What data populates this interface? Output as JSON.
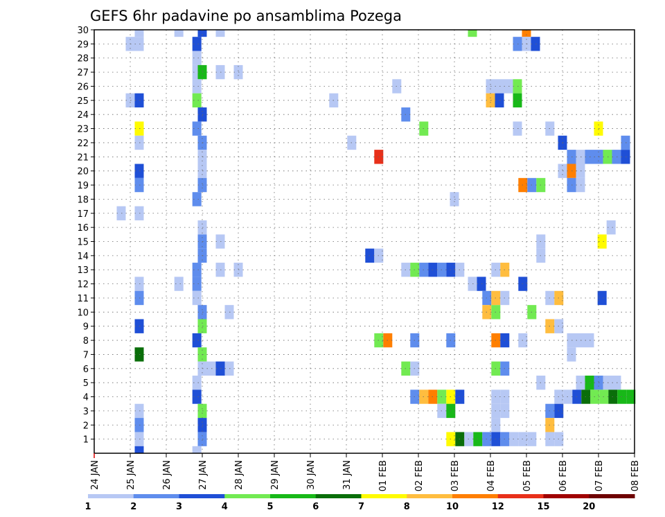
{
  "chart_data": {
    "type": "heatmap",
    "title": "GEFS 6hr padavine po ansamblima Pozega",
    "xlabel": "",
    "ylabel": "",
    "x_tick_labels": [
      "24 JAN",
      "25 JAN",
      "26 JAN",
      "27 JAN",
      "28 JAN",
      "29 JAN",
      "30 JAN",
      "31 JAN",
      "01 FEB",
      "02 FEB",
      "03 FEB",
      "04 FEB",
      "05 FEB",
      "06 FEB",
      "07 FEB",
      "08 FEB"
    ],
    "y_tick_labels": [
      "1",
      "2",
      "3",
      "4",
      "5",
      "6",
      "7",
      "8",
      "9",
      "10",
      "11",
      "12",
      "13",
      "14",
      "15",
      "16",
      "17",
      "18",
      "19",
      "20",
      "21",
      "22",
      "23",
      "24",
      "25",
      "26",
      "27",
      "28",
      "29",
      "30"
    ],
    "xlim": [
      0,
      15
    ],
    "ylim": [
      0,
      30
    ],
    "grid": true,
    "cell_width_days": 0.25,
    "levels": [
      "1",
      "2",
      "3",
      "4",
      "5",
      "6",
      "7",
      "8",
      "10",
      "12",
      "15",
      "20"
    ],
    "colors": [
      "#b7c8f4",
      "#5f8ded",
      "#1f4fd6",
      "#72ea52",
      "#18b818",
      "#0a6e0a",
      "#fffb00",
      "#ffbd3f",
      "#ff7f00",
      "#e8301a",
      "#a00000",
      "#6e0000"
    ],
    "cells": [
      [
        1.25,
        30,
        0
      ],
      [
        2.35,
        30,
        0
      ],
      [
        3.0,
        30,
        2
      ],
      [
        3.5,
        30,
        0
      ],
      [
        10.5,
        30,
        3
      ],
      [
        12.0,
        30,
        8
      ],
      [
        1.0,
        29,
        0
      ],
      [
        1.25,
        29,
        0
      ],
      [
        2.85,
        29,
        2
      ],
      [
        11.75,
        29,
        1
      ],
      [
        12.0,
        29,
        0
      ],
      [
        12.25,
        29,
        2
      ],
      [
        2.85,
        28,
        0
      ],
      [
        2.85,
        27,
        0
      ],
      [
        3.0,
        27,
        4
      ],
      [
        3.5,
        27,
        0
      ],
      [
        4.0,
        27,
        0
      ],
      [
        2.85,
        26,
        0
      ],
      [
        8.4,
        26,
        0
      ],
      [
        11.0,
        26,
        0
      ],
      [
        11.25,
        26,
        0
      ],
      [
        11.5,
        26,
        0
      ],
      [
        11.75,
        26,
        3
      ],
      [
        1.0,
        25,
        0
      ],
      [
        1.25,
        25,
        2
      ],
      [
        2.85,
        25,
        3
      ],
      [
        6.65,
        25,
        0
      ],
      [
        11.0,
        25,
        7
      ],
      [
        11.25,
        25,
        2
      ],
      [
        11.75,
        25,
        4
      ],
      [
        3.0,
        24,
        2
      ],
      [
        8.65,
        24,
        1
      ],
      [
        1.25,
        23,
        6
      ],
      [
        2.85,
        23,
        1
      ],
      [
        9.15,
        23,
        3
      ],
      [
        11.75,
        23,
        0
      ],
      [
        12.65,
        23,
        0
      ],
      [
        14.0,
        23,
        6
      ],
      [
        1.25,
        22,
        0
      ],
      [
        3.0,
        22,
        1
      ],
      [
        7.15,
        22,
        0
      ],
      [
        13.0,
        22,
        2
      ],
      [
        14.75,
        22,
        1
      ],
      [
        3.0,
        21,
        0
      ],
      [
        7.9,
        21,
        9
      ],
      [
        13.25,
        21,
        1
      ],
      [
        13.5,
        21,
        0
      ],
      [
        13.75,
        21,
        1
      ],
      [
        14.0,
        21,
        1
      ],
      [
        14.25,
        21,
        3
      ],
      [
        14.5,
        21,
        1
      ],
      [
        14.75,
        21,
        2
      ],
      [
        1.25,
        20,
        2
      ],
      [
        3.0,
        20,
        0
      ],
      [
        13.0,
        20,
        0
      ],
      [
        13.25,
        20,
        8
      ],
      [
        13.5,
        20,
        0
      ],
      [
        1.25,
        19,
        1
      ],
      [
        3.0,
        19,
        1
      ],
      [
        11.9,
        19,
        8
      ],
      [
        12.15,
        19,
        1
      ],
      [
        12.4,
        19,
        3
      ],
      [
        13.25,
        19,
        1
      ],
      [
        13.5,
        19,
        0
      ],
      [
        2.85,
        18,
        1
      ],
      [
        10.0,
        18,
        0
      ],
      [
        0.75,
        17,
        0
      ],
      [
        1.25,
        17,
        0
      ],
      [
        3.0,
        16,
        0
      ],
      [
        14.35,
        16,
        0
      ],
      [
        3.0,
        15,
        1
      ],
      [
        3.5,
        15,
        0
      ],
      [
        12.4,
        15,
        0
      ],
      [
        14.1,
        15,
        6
      ],
      [
        3.0,
        14,
        1
      ],
      [
        7.65,
        14,
        2
      ],
      [
        7.9,
        14,
        0
      ],
      [
        12.4,
        14,
        0
      ],
      [
        2.85,
        13,
        1
      ],
      [
        3.5,
        13,
        0
      ],
      [
        4.0,
        13,
        0
      ],
      [
        8.65,
        13,
        0
      ],
      [
        8.9,
        13,
        3
      ],
      [
        9.15,
        13,
        1
      ],
      [
        9.4,
        13,
        2
      ],
      [
        9.65,
        13,
        1
      ],
      [
        9.9,
        13,
        2
      ],
      [
        10.15,
        13,
        0
      ],
      [
        11.15,
        13,
        0
      ],
      [
        11.4,
        13,
        7
      ],
      [
        1.25,
        12,
        0
      ],
      [
        2.35,
        12,
        0
      ],
      [
        2.85,
        12,
        1
      ],
      [
        10.5,
        12,
        0
      ],
      [
        10.75,
        12,
        2
      ],
      [
        11.9,
        12,
        2
      ],
      [
        1.25,
        11,
        1
      ],
      [
        2.85,
        11,
        0
      ],
      [
        10.9,
        11,
        1
      ],
      [
        11.15,
        11,
        7
      ],
      [
        11.4,
        11,
        0
      ],
      [
        12.65,
        11,
        0
      ],
      [
        12.9,
        11,
        7
      ],
      [
        14.1,
        11,
        2
      ],
      [
        3.0,
        10,
        1
      ],
      [
        3.75,
        10,
        0
      ],
      [
        10.9,
        10,
        7
      ],
      [
        11.15,
        10,
        3
      ],
      [
        12.15,
        10,
        3
      ],
      [
        1.25,
        9,
        2
      ],
      [
        3.0,
        9,
        3
      ],
      [
        12.65,
        9,
        7
      ],
      [
        12.9,
        9,
        0
      ],
      [
        2.85,
        8,
        2
      ],
      [
        7.9,
        8,
        3
      ],
      [
        8.15,
        8,
        8
      ],
      [
        8.9,
        8,
        1
      ],
      [
        9.9,
        8,
        1
      ],
      [
        11.15,
        8,
        8
      ],
      [
        11.4,
        8,
        2
      ],
      [
        11.9,
        8,
        0
      ],
      [
        13.25,
        8,
        0
      ],
      [
        13.5,
        8,
        0
      ],
      [
        13.75,
        8,
        0
      ],
      [
        1.25,
        7,
        5
      ],
      [
        3.0,
        7,
        3
      ],
      [
        13.25,
        7,
        0
      ],
      [
        3.0,
        6,
        0
      ],
      [
        3.25,
        6,
        0
      ],
      [
        3.5,
        6,
        2
      ],
      [
        3.75,
        6,
        0
      ],
      [
        8.65,
        6,
        3
      ],
      [
        8.9,
        6,
        0
      ],
      [
        11.15,
        6,
        3
      ],
      [
        11.4,
        6,
        1
      ],
      [
        2.85,
        5,
        0
      ],
      [
        12.4,
        5,
        0
      ],
      [
        13.5,
        5,
        0
      ],
      [
        13.75,
        5,
        4
      ],
      [
        14.0,
        5,
        1
      ],
      [
        14.25,
        5,
        0
      ],
      [
        14.5,
        5,
        0
      ],
      [
        2.85,
        4,
        2
      ],
      [
        8.9,
        4,
        1
      ],
      [
        9.15,
        4,
        7
      ],
      [
        9.4,
        4,
        8
      ],
      [
        9.65,
        4,
        3
      ],
      [
        9.9,
        4,
        6
      ],
      [
        10.15,
        4,
        2
      ],
      [
        11.15,
        4,
        0
      ],
      [
        11.4,
        4,
        0
      ],
      [
        12.9,
        4,
        0
      ],
      [
        13.15,
        4,
        0
      ],
      [
        13.4,
        4,
        2
      ],
      [
        13.65,
        4,
        5
      ],
      [
        13.9,
        4,
        3
      ],
      [
        14.15,
        4,
        3
      ],
      [
        14.4,
        4,
        5
      ],
      [
        14.65,
        4,
        4
      ],
      [
        14.9,
        4,
        4
      ],
      [
        1.25,
        3,
        0
      ],
      [
        3.0,
        3,
        3
      ],
      [
        9.65,
        3,
        0
      ],
      [
        9.9,
        3,
        4
      ],
      [
        11.15,
        3,
        0
      ],
      [
        11.4,
        3,
        0
      ],
      [
        12.65,
        3,
        1
      ],
      [
        12.9,
        3,
        2
      ],
      [
        1.25,
        2,
        1
      ],
      [
        3.0,
        2,
        2
      ],
      [
        11.15,
        2,
        0
      ],
      [
        12.65,
        2,
        7
      ],
      [
        1.25,
        1,
        0
      ],
      [
        3.0,
        1,
        1
      ],
      [
        9.9,
        1,
        6
      ],
      [
        10.15,
        1,
        5
      ],
      [
        10.4,
        1,
        0
      ],
      [
        10.65,
        1,
        4
      ],
      [
        10.9,
        1,
        1
      ],
      [
        11.15,
        1,
        2
      ],
      [
        11.4,
        1,
        1
      ],
      [
        11.65,
        1,
        0
      ],
      [
        11.9,
        1,
        0
      ],
      [
        12.15,
        1,
        0
      ],
      [
        12.65,
        1,
        0
      ],
      [
        12.9,
        1,
        0
      ],
      [
        1.25,
        0,
        2
      ],
      [
        2.85,
        0,
        0
      ]
    ]
  }
}
